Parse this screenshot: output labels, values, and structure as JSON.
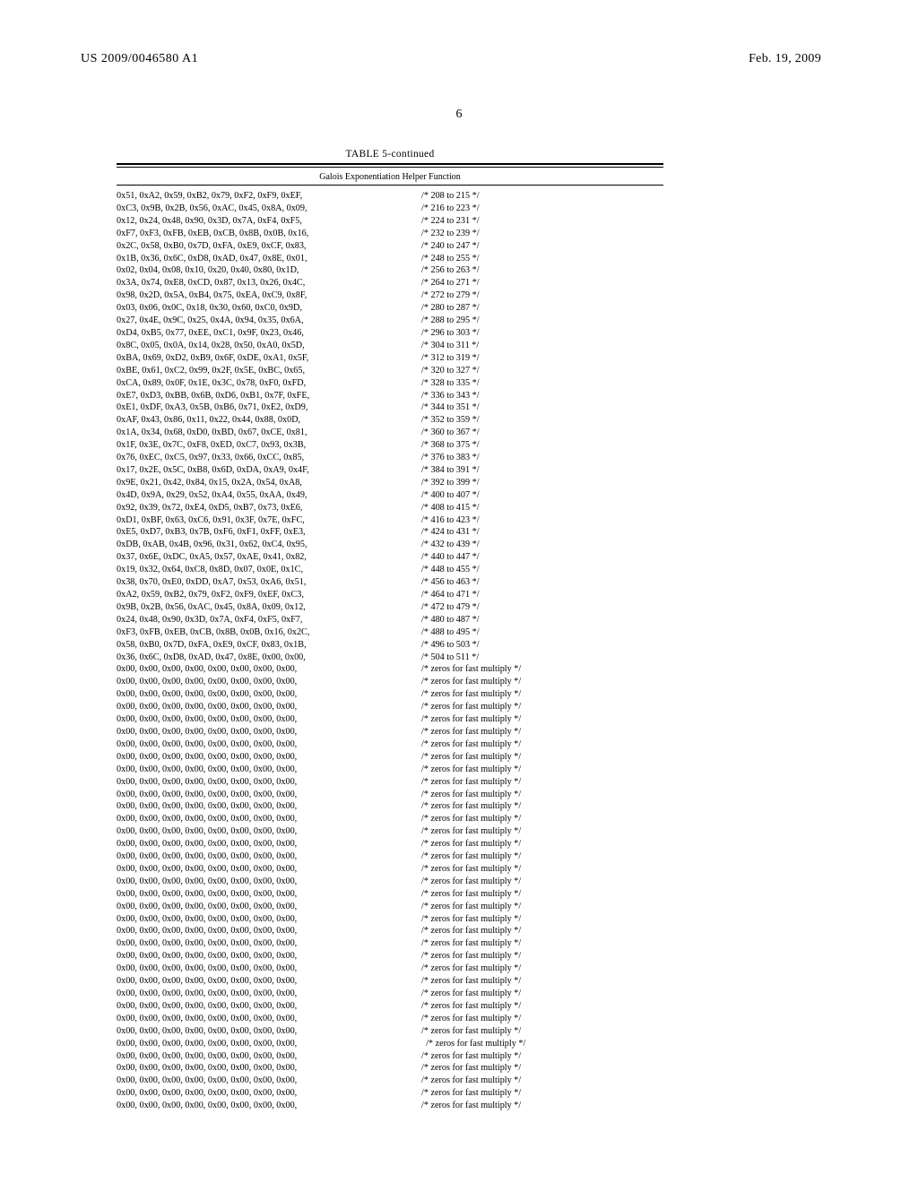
{
  "header": {
    "patent_id": "US 2009/0046580 A1",
    "date": "Feb. 19, 2009",
    "page_number": "6"
  },
  "table": {
    "title": "TABLE 5-continued",
    "subtitle": "Galois Exponentiation Helper Function",
    "rows": [
      {
        "hex": "0x51, 0xA2, 0x59, 0xB2, 0x79, 0xF2, 0xF9, 0xEF,",
        "cmt": "/* 208 to 215 */"
      },
      {
        "hex": "0xC3, 0x9B, 0x2B, 0x56, 0xAC, 0x45, 0x8A, 0x09,",
        "cmt": "/* 216 to 223 */"
      },
      {
        "hex": "0x12, 0x24, 0x48, 0x90, 0x3D, 0x7A, 0xF4, 0xF5,",
        "cmt": "/* 224 to 231 */"
      },
      {
        "hex": "0xF7, 0xF3, 0xFB, 0xEB, 0xCB, 0x8B, 0x0B, 0x16,",
        "cmt": "/* 232 to 239 */"
      },
      {
        "hex": "0x2C, 0x58, 0xB0, 0x7D, 0xFA, 0xE9, 0xCF, 0x83,",
        "cmt": "/* 240 to 247 */"
      },
      {
        "hex": "0x1B, 0x36, 0x6C, 0xD8, 0xAD, 0x47, 0x8E, 0x01,",
        "cmt": "/* 248 to 255 */"
      },
      {
        "hex": "0x02, 0x04, 0x08, 0x10, 0x20, 0x40, 0x80, 0x1D,",
        "cmt": "/* 256 to 263 */"
      },
      {
        "hex": "0x3A, 0x74, 0xE8, 0xCD, 0x87, 0x13, 0x26, 0x4C,",
        "cmt": "/* 264 to 271 */"
      },
      {
        "hex": "0x98, 0x2D, 0x5A, 0xB4, 0x75, 0xEA, 0xC9, 0x8F,",
        "cmt": "/* 272 to 279 */"
      },
      {
        "hex": "0x03, 0x06, 0x0C, 0x18, 0x30, 0x60, 0xC0, 0x9D,",
        "cmt": "/* 280 to 287 */"
      },
      {
        "hex": "0x27, 0x4E, 0x9C, 0x25, 0x4A, 0x94, 0x35, 0x6A,",
        "cmt": "/* 288 to 295 */"
      },
      {
        "hex": "0xD4, 0xB5, 0x77, 0xEE, 0xC1, 0x9F, 0x23, 0x46,",
        "cmt": "/* 296 to 303 */"
      },
      {
        "hex": "0x8C, 0x05, 0x0A, 0x14, 0x28, 0x50, 0xA0, 0x5D,",
        "cmt": "/* 304 to 311 */"
      },
      {
        "hex": "0xBA, 0x69, 0xD2, 0xB9, 0x6F, 0xDE, 0xA1, 0x5F,",
        "cmt": "/* 312 to 319 */"
      },
      {
        "hex": "0xBE, 0x61, 0xC2, 0x99, 0x2F, 0x5E, 0xBC, 0x65,",
        "cmt": "/* 320 to 327 */"
      },
      {
        "hex": "0xCA, 0x89, 0x0F, 0x1E, 0x3C, 0x78, 0xF0, 0xFD,",
        "cmt": "/* 328 to 335 */"
      },
      {
        "hex": "0xE7, 0xD3, 0xBB, 0x6B, 0xD6, 0xB1, 0x7F, 0xFE,",
        "cmt": "/* 336 to 343 */"
      },
      {
        "hex": "0xE1, 0xDF, 0xA3, 0x5B, 0xB6, 0x71, 0xE2, 0xD9,",
        "cmt": "/* 344 to 351 */"
      },
      {
        "hex": "0xAF, 0x43, 0x86, 0x11, 0x22, 0x44, 0x88, 0x0D,",
        "cmt": "/* 352 to 359 */"
      },
      {
        "hex": "0x1A, 0x34, 0x68, 0xD0, 0xBD, 0x67, 0xCE, 0x81,",
        "cmt": "/* 360 to 367 */"
      },
      {
        "hex": "0x1F, 0x3E, 0x7C, 0xF8, 0xED, 0xC7, 0x93, 0x3B,",
        "cmt": "/* 368 to 375 */"
      },
      {
        "hex": "0x76, 0xEC, 0xC5, 0x97, 0x33, 0x66, 0xCC, 0x85,",
        "cmt": "/* 376 to 383 */"
      },
      {
        "hex": "0x17, 0x2E, 0x5C, 0xB8, 0x6D, 0xDA, 0xA9, 0x4F,",
        "cmt": "/* 384 to 391 */"
      },
      {
        "hex": "0x9E, 0x21, 0x42, 0x84, 0x15, 0x2A, 0x54, 0xA8,",
        "cmt": "/* 392 to 399 */"
      },
      {
        "hex": "0x4D, 0x9A, 0x29, 0x52, 0xA4, 0x55, 0xAA, 0x49,",
        "cmt": "/* 400 to 407 */"
      },
      {
        "hex": "0x92, 0x39, 0x72, 0xE4, 0xD5, 0xB7, 0x73, 0xE6,",
        "cmt": "/* 408 to 415 */"
      },
      {
        "hex": "0xD1, 0xBF, 0x63, 0xC6, 0x91, 0x3F, 0x7E, 0xFC,",
        "cmt": "/* 416 to 423 */"
      },
      {
        "hex": "0xE5, 0xD7, 0xB3, 0x7B, 0xF6, 0xF1, 0xFF, 0xE3,",
        "cmt": "/* 424 to 431 */"
      },
      {
        "hex": "0xDB, 0xAB, 0x4B, 0x96, 0x31, 0x62, 0xC4, 0x95,",
        "cmt": "/* 432 to 439 */"
      },
      {
        "hex": "0x37, 0x6E, 0xDC, 0xA5, 0x57, 0xAE, 0x41, 0x82,",
        "cmt": "/* 440 to 447 */"
      },
      {
        "hex": "0x19, 0x32, 0x64, 0xC8, 0x8D, 0x07, 0x0E, 0x1C,",
        "cmt": "/* 448 to 455 */"
      },
      {
        "hex": "0x38, 0x70, 0xE0, 0xDD, 0xA7, 0x53, 0xA6, 0x51,",
        "cmt": "/* 456 to 463 */"
      },
      {
        "hex": "0xA2, 0x59, 0xB2, 0x79, 0xF2, 0xF9, 0xEF, 0xC3,",
        "cmt": "/* 464 to 471 */"
      },
      {
        "hex": "0x9B, 0x2B, 0x56, 0xAC, 0x45, 0x8A, 0x09, 0x12,",
        "cmt": "/* 472 to 479 */"
      },
      {
        "hex": "0x24, 0x48, 0x90, 0x3D, 0x7A, 0xF4, 0xF5, 0xF7,",
        "cmt": "/* 480 to 487 */"
      },
      {
        "hex": "0xF3, 0xFB, 0xEB, 0xCB, 0x8B, 0x0B, 0x16, 0x2C,",
        "cmt": "/* 488 to 495 */"
      },
      {
        "hex": "0x58, 0xB0, 0x7D, 0xFA, 0xE9, 0xCF, 0x83, 0x1B,",
        "cmt": "/* 496 to 503 */"
      },
      {
        "hex": "0x36, 0x6C, 0xD8, 0xAD, 0x47, 0x8E, 0x00, 0x00,",
        "cmt": "/* 504 to 511 */"
      },
      {
        "hex": "0x00, 0x00, 0x00, 0x00, 0x00, 0x00, 0x00, 0x00,",
        "cmt": "/* zeros for fast multiply */"
      },
      {
        "hex": "0x00, 0x00, 0x00, 0x00, 0x00, 0x00, 0x00, 0x00,",
        "cmt": "/* zeros for fast multiply */"
      },
      {
        "hex": "0x00, 0x00, 0x00, 0x00, 0x00, 0x00, 0x00, 0x00,",
        "cmt": "/* zeros for fast multiply */"
      },
      {
        "hex": "0x00, 0x00, 0x00, 0x00, 0x00, 0x00, 0x00, 0x00,",
        "cmt": "/* zeros for fast multiply */"
      },
      {
        "hex": "0x00, 0x00, 0x00, 0x00, 0x00, 0x00, 0x00, 0x00,",
        "cmt": "/* zeros for fast multiply */"
      },
      {
        "hex": "0x00, 0x00, 0x00, 0x00, 0x00, 0x00, 0x00, 0x00,",
        "cmt": "/* zeros for fast multiply */"
      },
      {
        "hex": "0x00, 0x00, 0x00, 0x00, 0x00, 0x00, 0x00, 0x00,",
        "cmt": "/* zeros for fast multiply */"
      },
      {
        "hex": "0x00, 0x00, 0x00, 0x00, 0x00, 0x00, 0x00, 0x00,",
        "cmt": "/* zeros for fast multiply */"
      },
      {
        "hex": "0x00, 0x00, 0x00, 0x00, 0x00, 0x00, 0x00, 0x00,",
        "cmt": "/* zeros for fast multiply */"
      },
      {
        "hex": "0x00, 0x00, 0x00, 0x00, 0x00, 0x00, 0x00, 0x00,",
        "cmt": "/* zeros for fast multiply */"
      },
      {
        "hex": "0x00, 0x00, 0x00, 0x00, 0x00, 0x00, 0x00, 0x00,",
        "cmt": "/* zeros for fast multiply */"
      },
      {
        "hex": "0x00, 0x00, 0x00, 0x00, 0x00, 0x00, 0x00, 0x00,",
        "cmt": "/* zeros for fast multiply */"
      },
      {
        "hex": "0x00, 0x00, 0x00, 0x00, 0x00, 0x00, 0x00, 0x00,",
        "cmt": "/* zeros for fast multiply */"
      },
      {
        "hex": "0x00, 0x00, 0x00, 0x00, 0x00, 0x00, 0x00, 0x00,",
        "cmt": "/* zeros for fast multiply */"
      },
      {
        "hex": "0x00, 0x00, 0x00, 0x00, 0x00, 0x00, 0x00, 0x00,",
        "cmt": "/* zeros for fast multiply */"
      },
      {
        "hex": "0x00, 0x00, 0x00, 0x00, 0x00, 0x00, 0x00, 0x00,",
        "cmt": "/* zeros for fast multiply */"
      },
      {
        "hex": "0x00, 0x00, 0x00, 0x00, 0x00, 0x00, 0x00, 0x00,",
        "cmt": "/* zeros for fast multiply */"
      },
      {
        "hex": "0x00, 0x00, 0x00, 0x00, 0x00, 0x00, 0x00, 0x00,",
        "cmt": "/* zeros for fast multiply */"
      },
      {
        "hex": "0x00, 0x00, 0x00, 0x00, 0x00, 0x00, 0x00, 0x00,",
        "cmt": "/* zeros for fast multiply */"
      },
      {
        "hex": "0x00, 0x00, 0x00, 0x00, 0x00, 0x00, 0x00, 0x00,",
        "cmt": "/* zeros for fast multiply */"
      },
      {
        "hex": "0x00, 0x00, 0x00, 0x00, 0x00, 0x00, 0x00, 0x00,",
        "cmt": "/* zeros for fast multiply */"
      },
      {
        "hex": "0x00, 0x00, 0x00, 0x00, 0x00, 0x00, 0x00, 0x00,",
        "cmt": "/* zeros for fast multiply */"
      },
      {
        "hex": "0x00, 0x00, 0x00, 0x00, 0x00, 0x00, 0x00, 0x00,",
        "cmt": "/* zeros for fast multiply */"
      },
      {
        "hex": "0x00, 0x00, 0x00, 0x00, 0x00, 0x00, 0x00, 0x00,",
        "cmt": "/* zeros for fast multiply */"
      },
      {
        "hex": "0x00, 0x00, 0x00, 0x00, 0x00, 0x00, 0x00, 0x00,",
        "cmt": "/* zeros for fast multiply */"
      },
      {
        "hex": "0x00, 0x00, 0x00, 0x00, 0x00, 0x00, 0x00, 0x00,",
        "cmt": "/* zeros for fast multiply */"
      },
      {
        "hex": "0x00, 0x00, 0x00, 0x00, 0x00, 0x00, 0x00, 0x00,",
        "cmt": "/* zeros for fast multiply */"
      },
      {
        "hex": "0x00, 0x00, 0x00, 0x00, 0x00, 0x00, 0x00, 0x00,",
        "cmt": "/* zeros for fast multiply */"
      },
      {
        "hex": "0x00, 0x00, 0x00, 0x00, 0x00, 0x00, 0x00, 0x00,",
        "cmt": "/* zeros for fast multiply */"
      },
      {
        "hex": "0x00, 0x00, 0x00, 0x00, 0x00, 0x00, 0x00, 0x00,",
        "cmt": "/* zeros for fast multiply */"
      },
      {
        "hex": "0x00, 0x00, 0x00, 0x00, 0x00, 0x00, 0x00, 0x00,",
        "cmt": "  /* zeros for fast multiply */"
      },
      {
        "hex": "0x00, 0x00, 0x00, 0x00, 0x00, 0x00, 0x00, 0x00,",
        "cmt": "/* zeros for fast multiply */"
      },
      {
        "hex": "0x00, 0x00, 0x00, 0x00, 0x00, 0x00, 0x00, 0x00,",
        "cmt": "/* zeros for fast multiply */"
      },
      {
        "hex": "0x00, 0x00, 0x00, 0x00, 0x00, 0x00, 0x00, 0x00,",
        "cmt": "/* zeros for fast multiply */"
      },
      {
        "hex": "0x00, 0x00, 0x00, 0x00, 0x00, 0x00, 0x00, 0x00,",
        "cmt": "/* zeros for fast multiply */"
      },
      {
        "hex": "0x00, 0x00, 0x00, 0x00, 0x00, 0x00, 0x00, 0x00,",
        "cmt": "/* zeros for fast multiply */"
      }
    ]
  }
}
